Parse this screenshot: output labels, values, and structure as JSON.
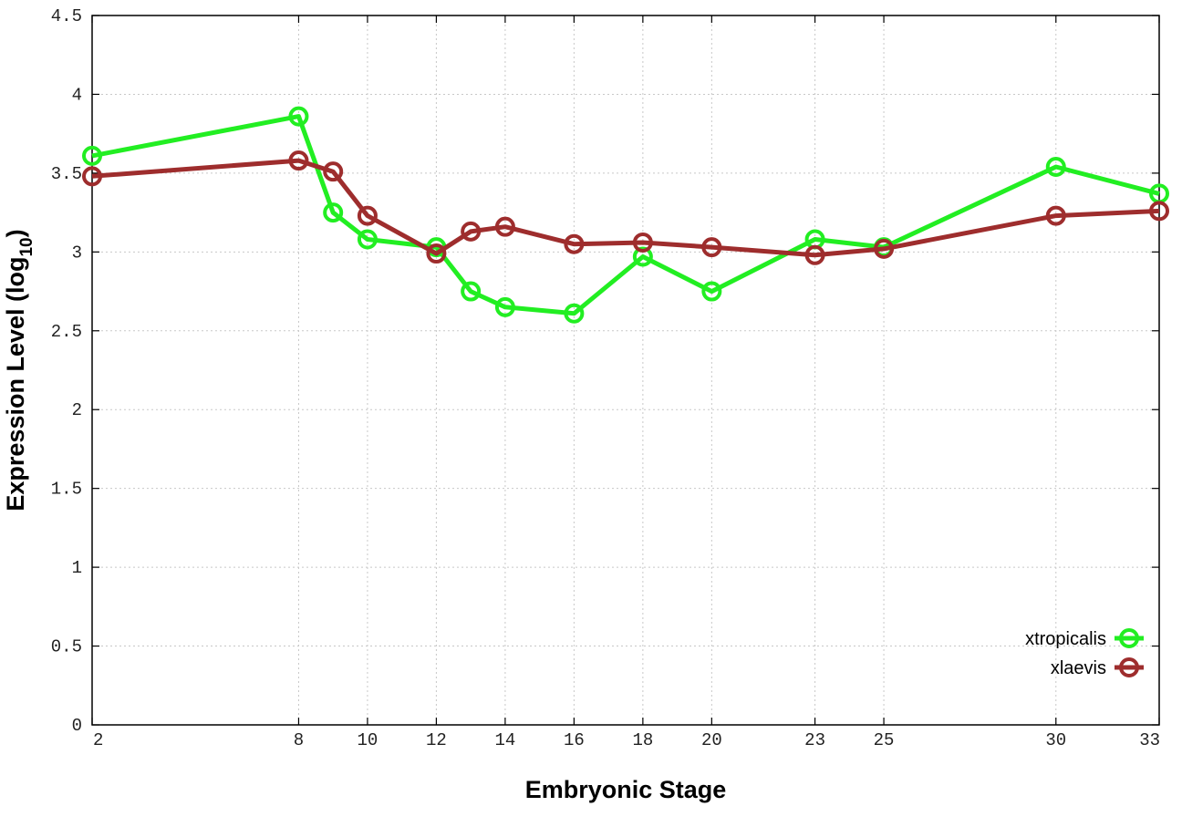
{
  "chart_data": {
    "type": "line",
    "xlabel": "Embryonic Stage",
    "ylabel_main": "Expression Level (log",
    "ylabel_sub": "10",
    "ylabel_close": ")",
    "x_ticks": [
      2,
      8,
      10,
      12,
      14,
      16,
      18,
      20,
      23,
      25,
      30,
      33
    ],
    "x_tick_labels": [
      "2",
      "8",
      "10",
      "12",
      "14",
      "16",
      "18",
      "20",
      "23",
      "25",
      "30",
      "33"
    ],
    "y_ticks": [
      0,
      0.5,
      1,
      1.5,
      2,
      2.5,
      3,
      3.5,
      4,
      4.5
    ],
    "y_tick_labels": [
      "0",
      "0.5",
      "1",
      "1.5",
      "2",
      "2.5",
      "3",
      "3.5",
      "4",
      "4.5"
    ],
    "xlim": [
      2,
      33
    ],
    "ylim": [
      0,
      4.5
    ],
    "grid": true,
    "legend_position": "bottom-right",
    "series": [
      {
        "name": "xtropicalis",
        "color": "#22ee22",
        "x": [
          2,
          8,
          9,
          10,
          12,
          13,
          14,
          16,
          18,
          20,
          23,
          25,
          30,
          33
        ],
        "y": [
          3.61,
          3.86,
          3.25,
          3.08,
          3.03,
          2.75,
          2.65,
          2.61,
          2.97,
          2.75,
          3.08,
          3.03,
          3.54,
          3.37
        ]
      },
      {
        "name": "xlaevis",
        "color": "#9e2d2d",
        "x": [
          2,
          8,
          9,
          10,
          12,
          13,
          14,
          16,
          18,
          20,
          23,
          25,
          30,
          33
        ],
        "y": [
          3.48,
          3.58,
          3.51,
          3.23,
          2.99,
          3.13,
          3.16,
          3.05,
          3.06,
          3.03,
          2.98,
          3.02,
          3.23,
          3.26
        ]
      }
    ]
  }
}
